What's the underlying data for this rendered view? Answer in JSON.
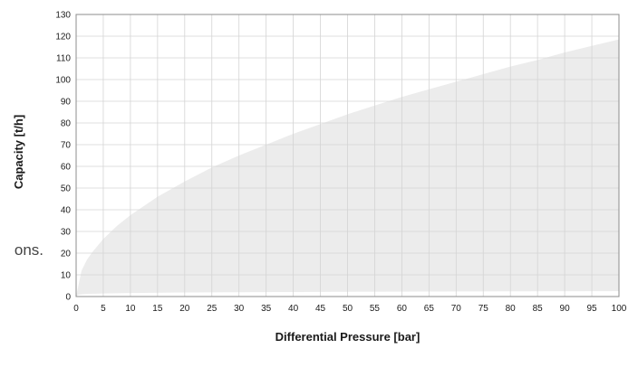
{
  "page": {
    "background_text_fragment": "ons."
  },
  "chart_data": {
    "type": "area",
    "title": "",
    "xlabel": "Differential Pressure [bar]",
    "ylabel": "Capacity [t/h]",
    "xlim": [
      0,
      100
    ],
    "ylim": [
      0,
      130
    ],
    "x_ticks": [
      0,
      5,
      10,
      15,
      20,
      25,
      30,
      35,
      40,
      45,
      50,
      55,
      60,
      65,
      70,
      75,
      80,
      85,
      90,
      95,
      100
    ],
    "y_ticks": [
      0,
      10,
      20,
      30,
      40,
      50,
      60,
      70,
      80,
      90,
      100,
      110,
      120,
      130
    ],
    "grid": true,
    "legend": "none",
    "colors": {
      "fill": "#ececec",
      "grid": "#d4d4d4",
      "frame": "#8c8c8c",
      "text": "#1a1a1a"
    },
    "series": [
      {
        "lower": {
          "x": [
            0,
            0.2,
            0.5,
            1,
            2,
            5,
            10,
            20,
            30,
            50,
            100
          ],
          "y": [
            0,
            0.5,
            0.9,
            1.0,
            1.2,
            1.4,
            1.6,
            1.9,
            2.0,
            2.2,
            2.5
          ]
        },
        "upper": {
          "x": [
            0,
            1,
            2,
            3,
            5,
            7.5,
            10,
            15,
            20,
            25,
            30,
            35,
            40,
            45,
            50,
            55,
            60,
            65,
            70,
            75,
            80,
            85,
            90,
            95,
            100
          ],
          "y": [
            0,
            12,
            17,
            20.5,
            26.5,
            32.5,
            37.5,
            46,
            53,
            59.5,
            65,
            70,
            75,
            79.5,
            84,
            88,
            92,
            95.5,
            99,
            102.5,
            106,
            109,
            112.5,
            115.5,
            118.5
          ]
        }
      }
    ]
  }
}
